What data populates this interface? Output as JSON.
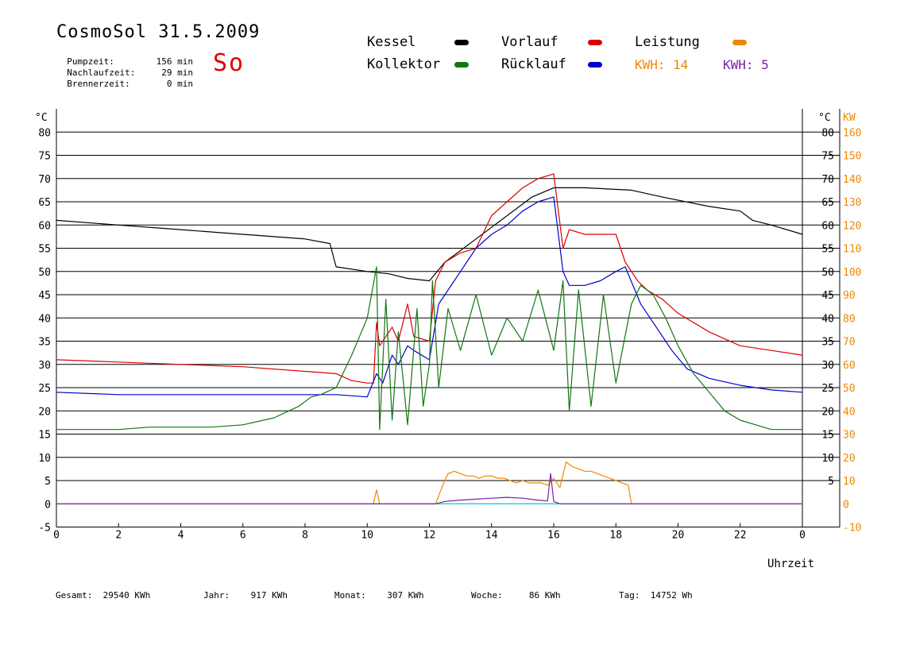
{
  "header": {
    "title": "CosmoSol 31.5.2009",
    "mode": "So",
    "stats": [
      {
        "label": "Pumpzeit:",
        "value": "156 min"
      },
      {
        "label": "Nachlaufzeit:",
        "value": "29 min"
      },
      {
        "label": "Brennerzeit:",
        "value": "0 min"
      }
    ]
  },
  "legend": {
    "kessel": {
      "label": "Kessel",
      "color": "#000000"
    },
    "vorlauf": {
      "label": "Vorlauf",
      "color": "#dd0000"
    },
    "leistung": {
      "label": "Leistung",
      "color": "#ee8800"
    },
    "kollektor": {
      "label": "Kollektor",
      "color": "#117711"
    },
    "ruecklauf": {
      "label": "Rücklauf",
      "color": "#0000cc"
    },
    "kwh1": "KWH: 14",
    "kwh1_color": "#ee8800",
    "kwh2": "KWH: 5",
    "kwh2_color": "#7722aa"
  },
  "footer": {
    "gesamt": "Gesamt:  29540 KWh",
    "jahr": "Jahr:    917 KWh",
    "monat": "Monat:    307 KWh",
    "woche": "Woche:     86 KWh",
    "tag": "Tag:  14752 Wh"
  },
  "chart_data": {
    "type": "line",
    "xlabel": "Uhrzeit",
    "xlim": [
      0,
      24
    ],
    "x_ticks": [
      "0",
      "2",
      "4",
      "6",
      "8",
      "10",
      "12",
      "14",
      "16",
      "18",
      "20",
      "22",
      "0"
    ],
    "y_left_unit": "°C",
    "y_left_ticks": [
      "-5",
      "0",
      "5",
      "10",
      "15",
      "20",
      "25",
      "30",
      "35",
      "40",
      "45",
      "50",
      "55",
      "60",
      "65",
      "70",
      "75",
      "80"
    ],
    "y_right_unit": "°C",
    "y_right_ticks": [
      "5",
      "10",
      "15",
      "20",
      "25",
      "30",
      "35",
      "40",
      "45",
      "50",
      "55",
      "60",
      "65",
      "70",
      "75",
      "80"
    ],
    "y_kw_unit": "KW",
    "y_kw_ticks": [
      "-10",
      "0",
      "10",
      "20",
      "30",
      "40",
      "50",
      "60",
      "70",
      "80",
      "90",
      "100",
      "110",
      "120",
      "130",
      "140",
      "150",
      "160"
    ],
    "ylim": [
      -5,
      85
    ],
    "grid": true,
    "reference_line": {
      "y": 0,
      "color": "#33cccc"
    },
    "series": [
      {
        "name": "Kessel",
        "color": "#000000",
        "x": [
          0,
          2,
          4,
          6,
          8,
          8.8,
          9.0,
          10,
          10.7,
          11.3,
          12.0,
          12.5,
          13.5,
          14.5,
          15.3,
          16.0,
          16.3,
          17,
          18.5,
          19.5,
          21,
          22,
          22.4,
          23,
          24
        ],
        "y": [
          61,
          60,
          59,
          58,
          57,
          56,
          51,
          50,
          49.5,
          48.5,
          48,
          52,
          57,
          62,
          66,
          68,
          68,
          68,
          67.5,
          66,
          64,
          63,
          61,
          60,
          58
        ]
      },
      {
        "name": "Vorlauf",
        "color": "#dd0000",
        "x": [
          0,
          2,
          4,
          6,
          8,
          9.0,
          9.5,
          10,
          10.2,
          10.3,
          10.4,
          10.8,
          11.0,
          11.3,
          11.5,
          12.0,
          12.2,
          12.5,
          13.0,
          13.5,
          14.0,
          14.5,
          15.0,
          15.5,
          16.0,
          16.3,
          16.5,
          17.0,
          17.5,
          18.0,
          18.3,
          18.7,
          19.0,
          19.5,
          20,
          21,
          22,
          23,
          24
        ],
        "y": [
          31,
          30.5,
          30,
          29.5,
          28.5,
          28,
          26.5,
          26,
          26,
          39,
          34,
          38,
          35,
          43,
          36,
          35,
          48,
          52,
          54,
          55,
          62,
          65,
          68,
          70,
          71,
          55,
          59,
          58,
          58,
          58,
          52,
          48,
          46,
          44,
          41,
          37,
          34,
          33,
          32
        ]
      },
      {
        "name": "Rücklauf",
        "color": "#0000cc",
        "x": [
          0,
          2,
          4,
          6,
          8,
          9.0,
          10,
          10.3,
          10.5,
          10.8,
          11.0,
          11.3,
          11.5,
          12.0,
          12.3,
          12.5,
          13.0,
          13.5,
          14.0,
          14.5,
          15.0,
          15.5,
          16.0,
          16.3,
          16.5,
          17.0,
          17.5,
          18.0,
          18.3,
          18.8,
          19.3,
          19.8,
          20.3,
          21,
          22,
          23,
          24
        ],
        "y": [
          24,
          23.5,
          23.5,
          23.5,
          23.5,
          23.5,
          23,
          28,
          26,
          32,
          30,
          34,
          33,
          31,
          43,
          45,
          50,
          55,
          58,
          60,
          63,
          65,
          66,
          50,
          47,
          47,
          48,
          50,
          51,
          43,
          38,
          33,
          29,
          27,
          25.5,
          24.5,
          24
        ]
      },
      {
        "name": "Kollektor",
        "color": "#117711",
        "x": [
          0,
          1,
          2,
          3,
          4,
          5,
          6,
          7,
          7.8,
          8.2,
          8.5,
          9.0,
          9.5,
          10.0,
          10.3,
          10.4,
          10.6,
          10.8,
          11.0,
          11.3,
          11.6,
          11.8,
          12.0,
          12.1,
          12.3,
          12.6,
          13.0,
          13.5,
          14.0,
          14.5,
          15.0,
          15.5,
          16.0,
          16.3,
          16.5,
          16.8,
          17.2,
          17.6,
          18.0,
          18.5,
          18.8,
          19.2,
          19.6,
          20,
          20.5,
          21,
          21.5,
          22,
          22.5,
          23,
          24
        ],
        "y": [
          16,
          16,
          16,
          16.5,
          16.5,
          16.5,
          17,
          18.5,
          21,
          23,
          23.5,
          25,
          32,
          40,
          51,
          16,
          44,
          18,
          37,
          17,
          42,
          21,
          30,
          48,
          25,
          42,
          33,
          45,
          32,
          40,
          35,
          46,
          33,
          48,
          20,
          46,
          21,
          45,
          26,
          43,
          47,
          45,
          40,
          34,
          28,
          24,
          20,
          18,
          17,
          16,
          16
        ]
      },
      {
        "name": "Leistung",
        "color": "#ee8800",
        "x": [
          0,
          10.2,
          10.3,
          10.4,
          12.2,
          12.4,
          12.6,
          12.8,
          13.0,
          13.2,
          13.4,
          13.6,
          13.8,
          14.0,
          14.2,
          14.4,
          14.6,
          14.8,
          15.0,
          15.2,
          15.4,
          15.6,
          15.8,
          16.0,
          16.2,
          16.4,
          16.6,
          16.8,
          17.0,
          17.2,
          17.4,
          17.6,
          17.8,
          18.0,
          18.2,
          18.4,
          18.5,
          24
        ],
        "y": [
          0,
          0,
          3,
          0,
          0,
          3.5,
          6.5,
          7,
          6.5,
          6,
          6,
          5.5,
          6,
          6,
          5.5,
          5.5,
          5,
          4.5,
          5,
          4.5,
          4.5,
          4.5,
          4,
          5.5,
          3.5,
          9,
          8,
          7.5,
          7,
          7,
          6.5,
          6,
          5.5,
          5,
          4.5,
          4,
          0,
          0
        ]
      },
      {
        "name": "Kessel Leistung",
        "color": "#7722aa",
        "x": [
          0,
          12.2,
          12.5,
          13.0,
          13.5,
          14.0,
          14.5,
          15.0,
          15.5,
          15.8,
          15.9,
          16.0,
          16.2,
          24
        ],
        "y": [
          0,
          0,
          0.5,
          0.8,
          1.0,
          1.2,
          1.4,
          1.2,
          0.8,
          0.6,
          6.5,
          0.5,
          0,
          0
        ]
      }
    ]
  }
}
